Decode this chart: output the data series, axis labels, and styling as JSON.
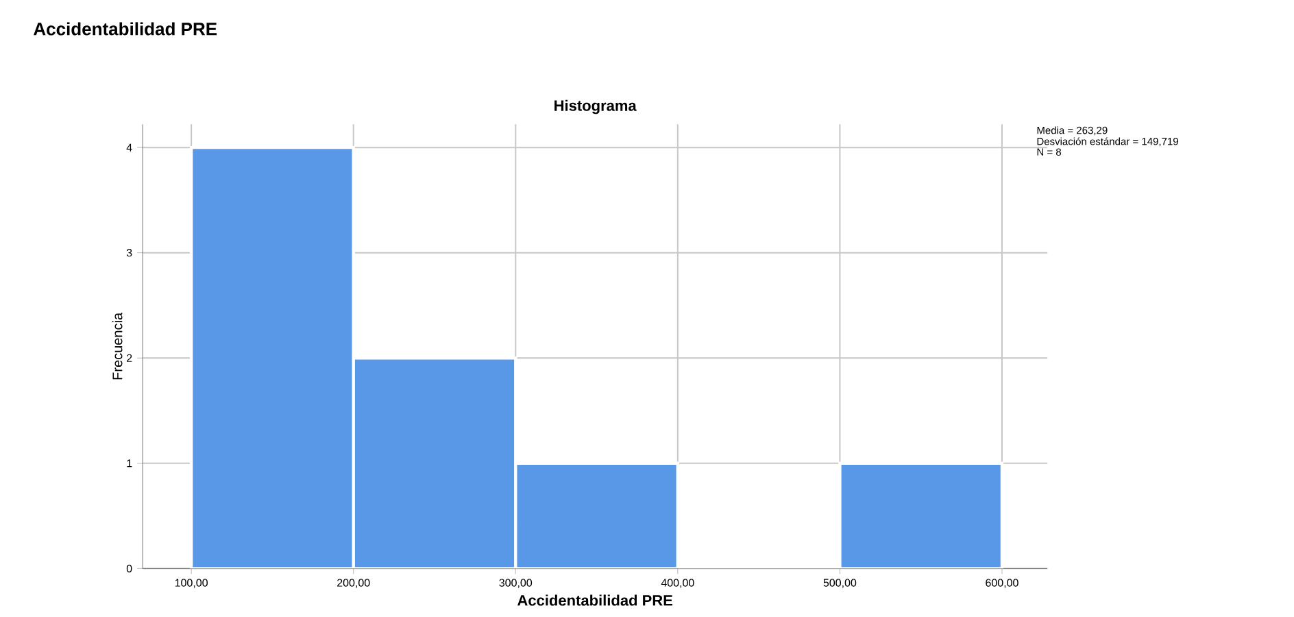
{
  "chart_data": {
    "type": "histogram",
    "title": "Histograma",
    "subtitle": "Accidentabilidad PRE",
    "xlabel": "Accidentabilidad PRE",
    "ylabel": "Frecuencia",
    "bins": [
      100,
      200,
      300,
      400,
      500,
      600
    ],
    "values": [
      4,
      2,
      1,
      0,
      1
    ],
    "color": "#5898e6",
    "xlim": [
      70,
      628
    ],
    "ylim": [
      0,
      4.22
    ],
    "xticks": [
      {
        "value": 100,
        "label": "100,00"
      },
      {
        "value": 200,
        "label": "200,00"
      },
      {
        "value": 300,
        "label": "300,00"
      },
      {
        "value": 400,
        "label": "400,00"
      },
      {
        "value": 500,
        "label": "500,00"
      },
      {
        "value": 600,
        "label": "600,00"
      }
    ],
    "yticks": [
      0,
      1,
      2,
      3,
      4
    ],
    "grid": true,
    "annotations": [
      "Media = 263,29",
      "Desviación estándar = 149,719",
      "N = 8"
    ]
  }
}
